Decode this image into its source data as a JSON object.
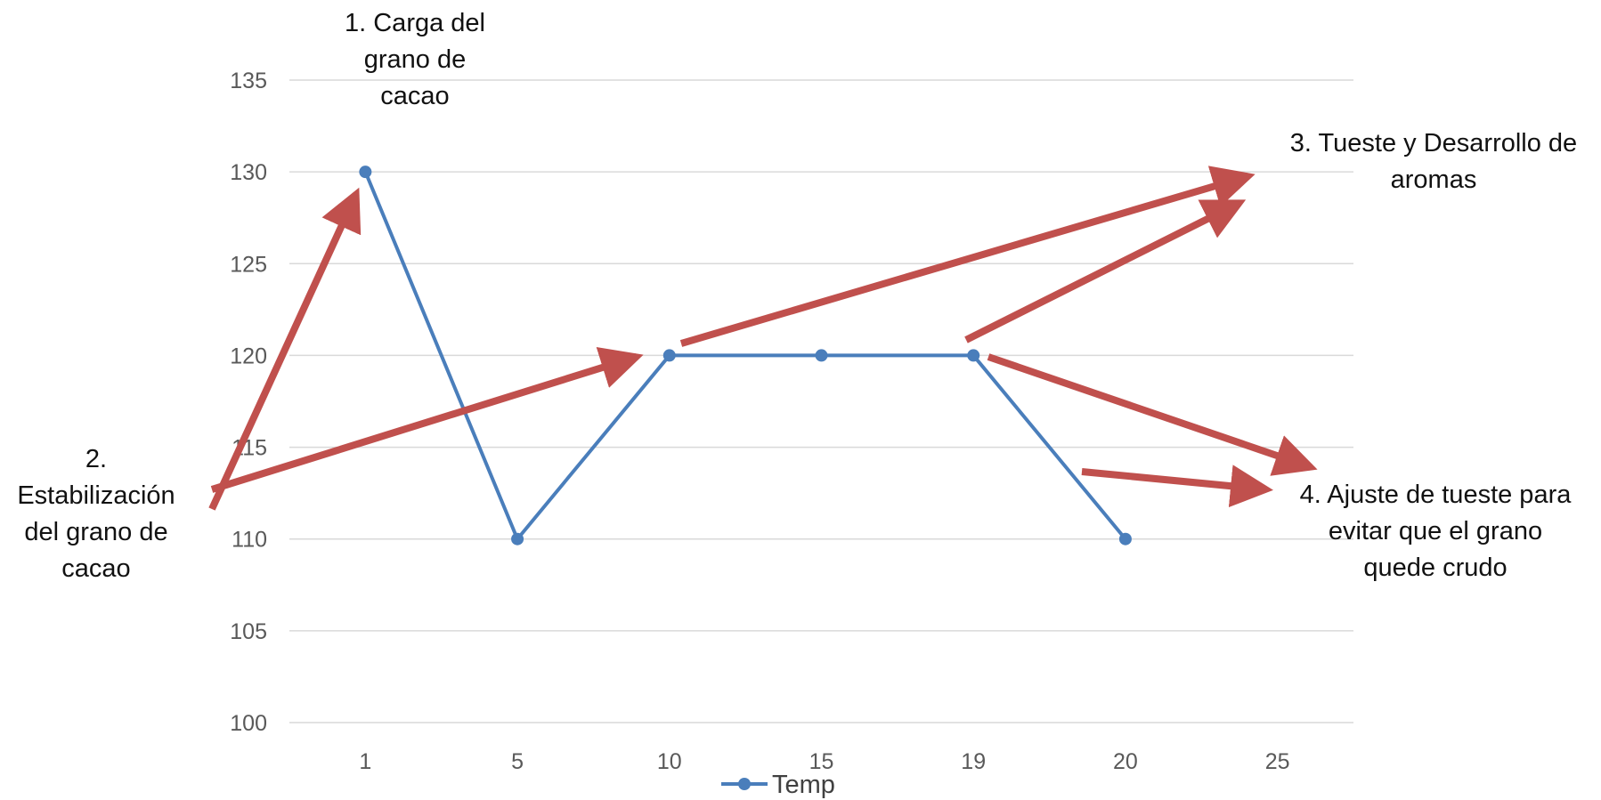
{
  "chart_data": {
    "type": "line",
    "categories": [
      "1",
      "5",
      "10",
      "15",
      "19",
      "20",
      "25"
    ],
    "series": [
      {
        "name": "Temp",
        "values": [
          130,
          110,
          120,
          120,
          120,
          110,
          null
        ],
        "color": "#4a7ebb"
      }
    ],
    "y_ticks": [
      "100",
      "105",
      "110",
      "115",
      "120",
      "125",
      "130",
      "135"
    ],
    "ylim": [
      100,
      135
    ],
    "grid": true,
    "legend": "bottom-center",
    "annotation_color": "#c0504d",
    "annotations": [
      {
        "lines": [
          "1. Carga del",
          "grano de",
          "cacao"
        ]
      },
      {
        "lines": [
          "2.",
          "Estabilización",
          "del grano de",
          "cacao"
        ]
      },
      {
        "lines": [
          "3. Tueste y Desarrollo de",
          "aromas"
        ]
      },
      {
        "lines": [
          "4. Ajuste de tueste para",
          "evitar que el grano",
          "quede crudo"
        ]
      }
    ]
  }
}
